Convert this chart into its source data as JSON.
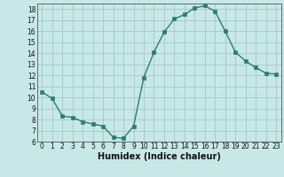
{
  "x": [
    0,
    1,
    2,
    3,
    4,
    5,
    6,
    7,
    8,
    9,
    10,
    11,
    12,
    13,
    14,
    15,
    16,
    17,
    18,
    19,
    20,
    21,
    22,
    23
  ],
  "y": [
    10.5,
    9.9,
    8.3,
    8.2,
    7.8,
    7.6,
    7.4,
    6.4,
    6.3,
    7.4,
    11.8,
    14.1,
    15.9,
    17.1,
    17.5,
    18.1,
    18.3,
    17.8,
    16.0,
    14.1,
    13.3,
    12.7,
    12.2,
    12.1
  ],
  "line_color": "#2e7d6e",
  "marker_color": "#2e7d6e",
  "bg_color": "#c8e8e8",
  "grid_color": "#a0c8c8",
  "xlabel": "Humidex (Indice chaleur)",
  "ylim": [
    6,
    18.5
  ],
  "xlim": [
    -0.5,
    23.5
  ],
  "yticks": [
    6,
    7,
    8,
    9,
    10,
    11,
    12,
    13,
    14,
    15,
    16,
    17,
    18
  ],
  "xticks": [
    0,
    1,
    2,
    3,
    4,
    5,
    6,
    7,
    8,
    9,
    10,
    11,
    12,
    13,
    14,
    15,
    16,
    17,
    18,
    19,
    20,
    21,
    22,
    23
  ],
  "tick_fontsize": 5.5,
  "label_fontsize": 7.0
}
